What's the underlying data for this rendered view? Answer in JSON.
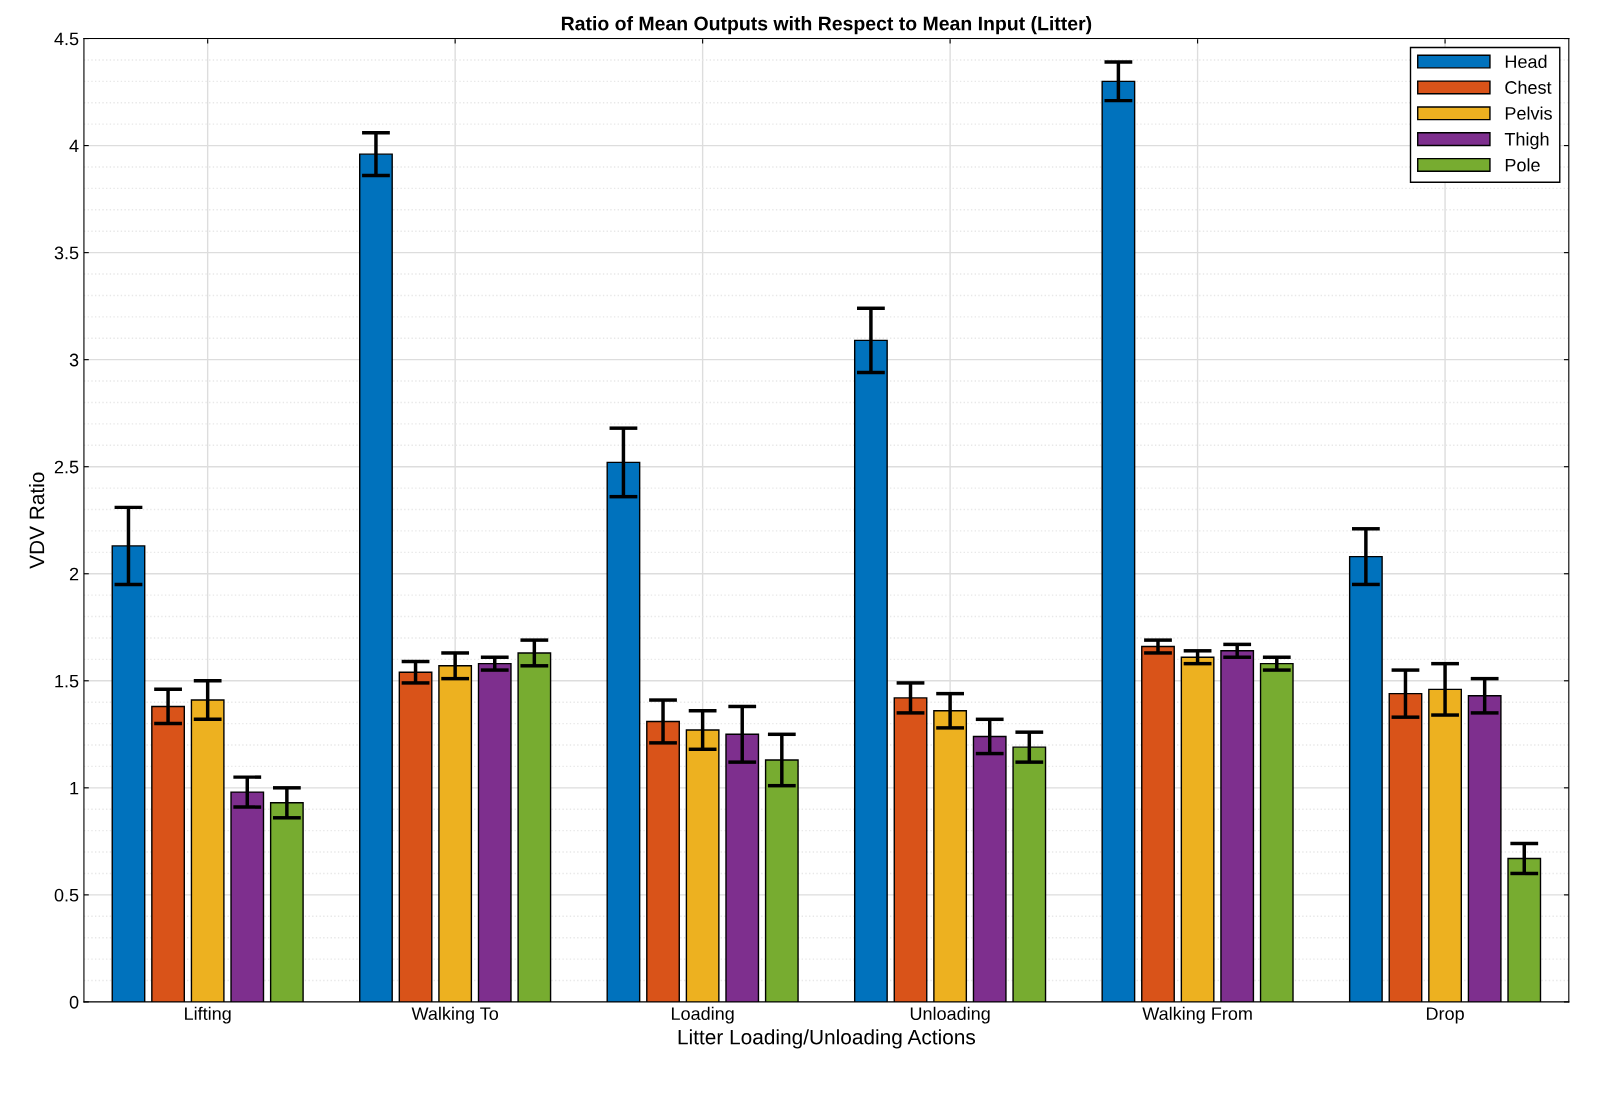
{
  "chart_data": {
    "type": "bar",
    "title": "Ratio of Mean Outputs with Respect to Mean Input (Litter)",
    "xlabel": "Litter Loading/Unloading Actions",
    "ylabel": "VDV Ratio",
    "categories": [
      "Lifting",
      "Walking To",
      "Loading",
      "Unloading",
      "Walking From",
      "Drop"
    ],
    "series": [
      {
        "name": "Head",
        "color": "#0072bd",
        "values": [
          2.13,
          3.96,
          2.52,
          3.09,
          4.3,
          2.08
        ],
        "errors": [
          0.18,
          0.1,
          0.16,
          0.15,
          0.09,
          0.13
        ]
      },
      {
        "name": "Chest",
        "color": "#d95319",
        "values": [
          1.38,
          1.54,
          1.31,
          1.42,
          1.66,
          1.44
        ],
        "errors": [
          0.08,
          0.05,
          0.1,
          0.07,
          0.03,
          0.11
        ]
      },
      {
        "name": "Pelvis",
        "color": "#edb120",
        "values": [
          1.41,
          1.57,
          1.27,
          1.36,
          1.61,
          1.46
        ],
        "errors": [
          0.09,
          0.06,
          0.09,
          0.08,
          0.03,
          0.12
        ]
      },
      {
        "name": "Thigh",
        "color": "#7e2f8e",
        "values": [
          0.98,
          1.58,
          1.25,
          1.24,
          1.64,
          1.43
        ],
        "errors": [
          0.07,
          0.03,
          0.13,
          0.08,
          0.03,
          0.08
        ]
      },
      {
        "name": "Pole",
        "color": "#77ac30",
        "values": [
          0.93,
          1.63,
          1.13,
          1.19,
          1.58,
          0.67
        ],
        "errors": [
          0.07,
          0.06,
          0.12,
          0.07,
          0.03,
          0.07
        ]
      }
    ],
    "ylim": [
      0,
      4.5
    ],
    "yticks": [
      0,
      0.5,
      1,
      1.5,
      2,
      2.5,
      3,
      3.5,
      4,
      4.5
    ],
    "grid": true,
    "legend": "top right"
  }
}
